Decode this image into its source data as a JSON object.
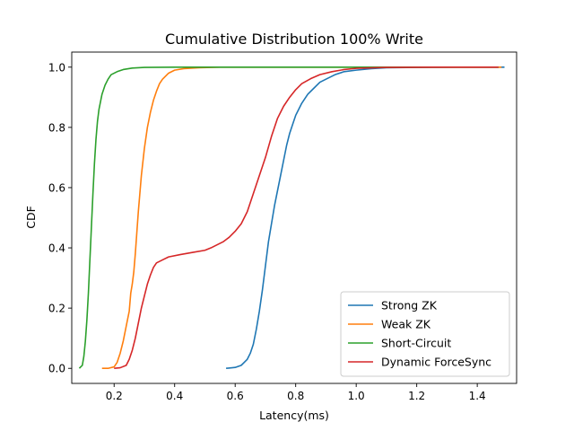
{
  "chart_data": {
    "type": "line",
    "title": "Cumulative Distribution 100% Write",
    "xlabel": "Latency(ms)",
    "ylabel": "CDF",
    "xlim": [
      0.06,
      1.53
    ],
    "ylim": [
      -0.05,
      1.05
    ],
    "x_ticks": [
      0.2,
      0.4,
      0.6,
      0.8,
      1.0,
      1.2,
      1.4
    ],
    "x_tick_labels": [
      "0.2",
      "0.4",
      "0.6",
      "0.8",
      "1.0",
      "1.2",
      "1.4"
    ],
    "y_ticks": [
      0.0,
      0.2,
      0.4,
      0.6,
      0.8,
      1.0
    ],
    "y_tick_labels": [
      "0.0",
      "0.2",
      "0.4",
      "0.6",
      "0.8",
      "1.0"
    ],
    "grid": false,
    "legend_position": "lower-right",
    "series": [
      {
        "name": "Strong ZK",
        "color": "#1f77b4",
        "points": [
          [
            0.57,
            0.0
          ],
          [
            0.6,
            0.003
          ],
          [
            0.62,
            0.01
          ],
          [
            0.63,
            0.02
          ],
          [
            0.64,
            0.03
          ],
          [
            0.65,
            0.05
          ],
          [
            0.66,
            0.08
          ],
          [
            0.67,
            0.13
          ],
          [
            0.68,
            0.19
          ],
          [
            0.69,
            0.26
          ],
          [
            0.7,
            0.34
          ],
          [
            0.71,
            0.42
          ],
          [
            0.72,
            0.48
          ],
          [
            0.73,
            0.54
          ],
          [
            0.74,
            0.59
          ],
          [
            0.75,
            0.64
          ],
          [
            0.76,
            0.69
          ],
          [
            0.77,
            0.74
          ],
          [
            0.78,
            0.78
          ],
          [
            0.79,
            0.81
          ],
          [
            0.8,
            0.84
          ],
          [
            0.82,
            0.88
          ],
          [
            0.84,
            0.91
          ],
          [
            0.86,
            0.93
          ],
          [
            0.88,
            0.95
          ],
          [
            0.9,
            0.96
          ],
          [
            0.93,
            0.975
          ],
          [
            0.96,
            0.985
          ],
          [
            1.0,
            0.99
          ],
          [
            1.05,
            0.995
          ],
          [
            1.1,
            0.998
          ],
          [
            1.2,
            0.999
          ],
          [
            1.35,
            1.0
          ],
          [
            1.49,
            1.0
          ]
        ]
      },
      {
        "name": "Weak ZK",
        "color": "#ff7f0e",
        "points": [
          [
            0.16,
            0.0
          ],
          [
            0.18,
            0.0
          ],
          [
            0.2,
            0.005
          ],
          [
            0.21,
            0.02
          ],
          [
            0.22,
            0.05
          ],
          [
            0.23,
            0.09
          ],
          [
            0.24,
            0.14
          ],
          [
            0.25,
            0.19
          ],
          [
            0.255,
            0.25
          ],
          [
            0.26,
            0.28
          ],
          [
            0.265,
            0.32
          ],
          [
            0.27,
            0.38
          ],
          [
            0.275,
            0.45
          ],
          [
            0.28,
            0.52
          ],
          [
            0.29,
            0.64
          ],
          [
            0.3,
            0.73
          ],
          [
            0.31,
            0.8
          ],
          [
            0.32,
            0.85
          ],
          [
            0.33,
            0.89
          ],
          [
            0.34,
            0.92
          ],
          [
            0.35,
            0.945
          ],
          [
            0.36,
            0.96
          ],
          [
            0.38,
            0.98
          ],
          [
            0.4,
            0.99
          ],
          [
            0.43,
            0.995
          ],
          [
            0.48,
            0.998
          ],
          [
            0.55,
            1.0
          ],
          [
            0.7,
            1.0
          ],
          [
            1.0,
            1.0
          ],
          [
            1.2,
            1.0
          ],
          [
            1.48,
            1.0
          ]
        ]
      },
      {
        "name": "Short-Circuit",
        "color": "#2ca02c",
        "points": [
          [
            0.085,
            0.0
          ],
          [
            0.095,
            0.01
          ],
          [
            0.1,
            0.04
          ],
          [
            0.105,
            0.09
          ],
          [
            0.11,
            0.16
          ],
          [
            0.115,
            0.25
          ],
          [
            0.12,
            0.36
          ],
          [
            0.125,
            0.47
          ],
          [
            0.13,
            0.58
          ],
          [
            0.135,
            0.68
          ],
          [
            0.14,
            0.76
          ],
          [
            0.145,
            0.82
          ],
          [
            0.15,
            0.86
          ],
          [
            0.16,
            0.91
          ],
          [
            0.17,
            0.94
          ],
          [
            0.18,
            0.96
          ],
          [
            0.19,
            0.975
          ],
          [
            0.21,
            0.985
          ],
          [
            0.23,
            0.992
          ],
          [
            0.26,
            0.997
          ],
          [
            0.3,
            0.999
          ],
          [
            0.4,
            1.0
          ],
          [
            0.6,
            1.0
          ],
          [
            1.0,
            1.0
          ],
          [
            1.3,
            1.0
          ],
          [
            1.47,
            1.0
          ]
        ]
      },
      {
        "name": "Dynamic ForceSync",
        "color": "#d62728",
        "points": [
          [
            0.2,
            0.0
          ],
          [
            0.22,
            0.002
          ],
          [
            0.24,
            0.01
          ],
          [
            0.25,
            0.03
          ],
          [
            0.26,
            0.06
          ],
          [
            0.27,
            0.1
          ],
          [
            0.28,
            0.15
          ],
          [
            0.29,
            0.2
          ],
          [
            0.3,
            0.24
          ],
          [
            0.31,
            0.28
          ],
          [
            0.32,
            0.31
          ],
          [
            0.33,
            0.335
          ],
          [
            0.34,
            0.35
          ],
          [
            0.36,
            0.36
          ],
          [
            0.38,
            0.37
          ],
          [
            0.42,
            0.378
          ],
          [
            0.46,
            0.385
          ],
          [
            0.5,
            0.392
          ],
          [
            0.52,
            0.4
          ],
          [
            0.54,
            0.41
          ],
          [
            0.56,
            0.42
          ],
          [
            0.58,
            0.435
          ],
          [
            0.6,
            0.455
          ],
          [
            0.62,
            0.48
          ],
          [
            0.64,
            0.52
          ],
          [
            0.66,
            0.58
          ],
          [
            0.68,
            0.64
          ],
          [
            0.7,
            0.7
          ],
          [
            0.72,
            0.77
          ],
          [
            0.74,
            0.83
          ],
          [
            0.76,
            0.87
          ],
          [
            0.78,
            0.9
          ],
          [
            0.8,
            0.925
          ],
          [
            0.82,
            0.945
          ],
          [
            0.85,
            0.962
          ],
          [
            0.88,
            0.975
          ],
          [
            0.92,
            0.985
          ],
          [
            0.96,
            0.992
          ],
          [
            1.0,
            0.996
          ],
          [
            1.1,
            0.999
          ],
          [
            1.25,
            1.0
          ],
          [
            1.47,
            1.0
          ]
        ]
      }
    ]
  }
}
